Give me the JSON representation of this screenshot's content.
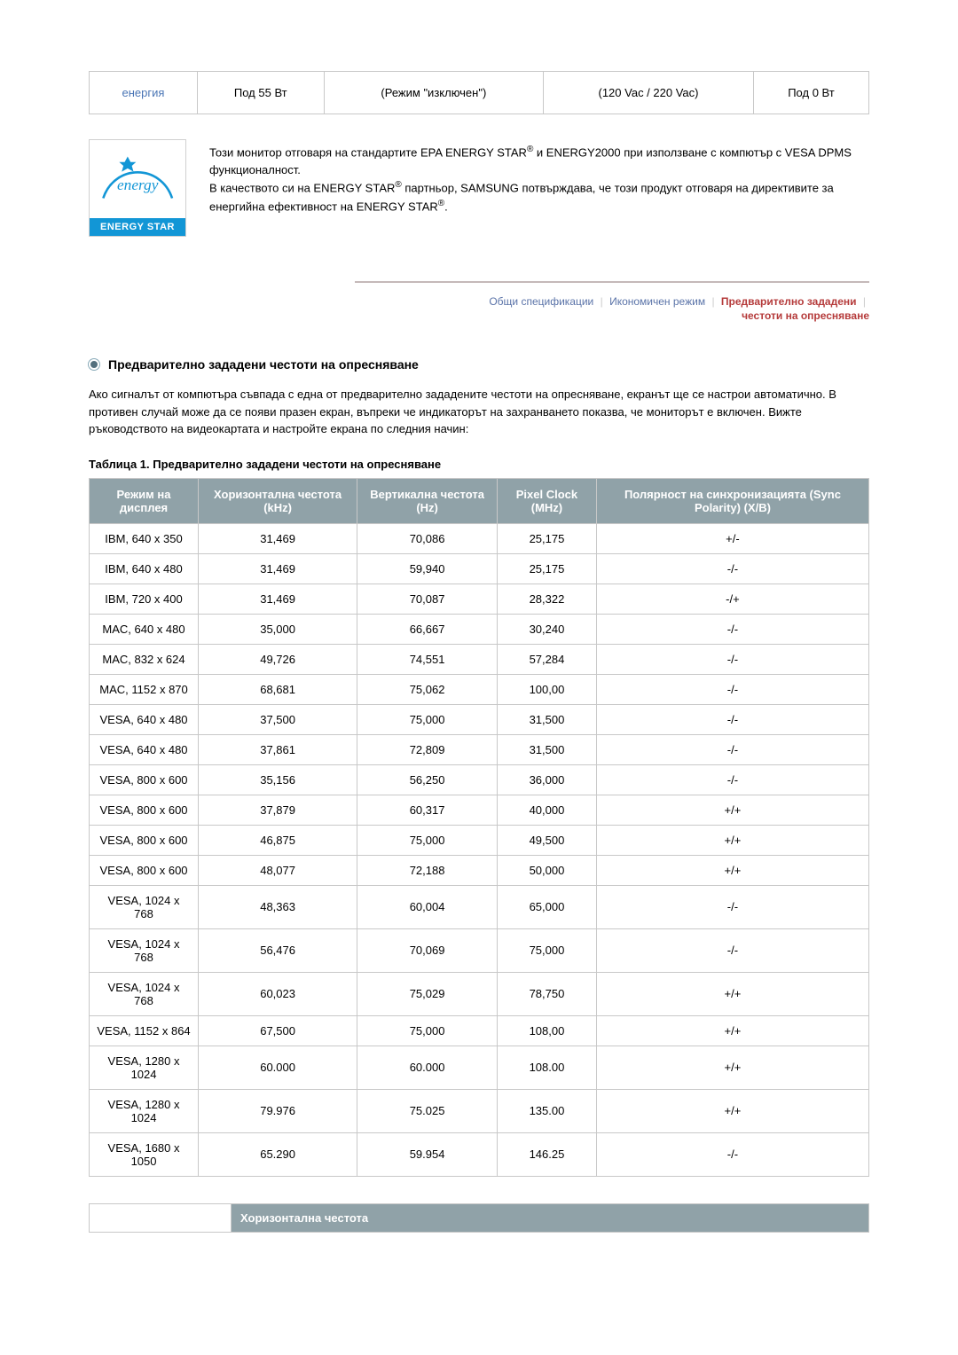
{
  "power_table": {
    "cells": [
      "енергия",
      "Под 55 Вт",
      "(Режим \"изключен\")",
      "(120 Vac / 220 Vac)",
      "Под 0 Вт"
    ]
  },
  "energy_star": {
    "logo_text_top": "energy",
    "logo_text_bar": "ENERGY STAR",
    "text_1": "Този монитор отговаря на стандартите EPA ENERGY STAR",
    "text_2": " и ENERGY2000 при използване с компютър с VESA DPMS функционалност.",
    "text_3": "В качеството си на ENERGY STAR",
    "text_4": " партньор, SAMSUNG потвърждава, че този продукт отговаря на директивите за енергийна ефективност на ENERGY STAR",
    "reg": "®"
  },
  "nav": {
    "item1": "Общи спецификации",
    "item2": "Икономичен режим",
    "item3": "Предварително зададени",
    "item3_sub": "честоти на опресняване",
    "sep": "|",
    "active_color": "#b53b3b",
    "inactive_color": "#6b7a9a"
  },
  "section": {
    "heading": "Предварително зададени честоти на опресняване",
    "body": "Ако сигналът от компютъра съвпада с една от предварително зададените честоти на опресняване, екранът ще се настрои автоматично. В противен случай може да се появи празен екран, въпреки че индикаторът на захранването показва, че мониторът е включен. Вижте ръководството на видеокартата и настройте екрана по следния начин:",
    "table_caption": "Таблица 1. Предварително зададени честоти на опресняване"
  },
  "preset_table": {
    "headers": [
      "Режим на дисплея",
      "Хоризонтална честота (kHz)",
      "Вертикална честота (Hz)",
      "Pixel Clock (MHz)",
      "Полярност на синхронизацията (Sync Polarity) (X/B)"
    ],
    "rows": [
      [
        "IBM, 640 x 350",
        "31,469",
        "70,086",
        "25,175",
        "+/-"
      ],
      [
        "IBM, 640 x 480",
        "31,469",
        "59,940",
        "25,175",
        "-/-"
      ],
      [
        "IBM, 720 x 400",
        "31,469",
        "70,087",
        "28,322",
        "-/+"
      ],
      [
        "MAC, 640 x 480",
        "35,000",
        "66,667",
        "30,240",
        "-/-"
      ],
      [
        "MAC, 832 x 624",
        "49,726",
        "74,551",
        "57,284",
        "-/-"
      ],
      [
        "MAC, 1152 x 870",
        "68,681",
        "75,062",
        "100,00",
        "-/-"
      ],
      [
        "VESA, 640 x 480",
        "37,500",
        "75,000",
        "31,500",
        "-/-"
      ],
      [
        "VESA, 640 x 480",
        "37,861",
        "72,809",
        "31,500",
        "-/-"
      ],
      [
        "VESA, 800 x 600",
        "35,156",
        "56,250",
        "36,000",
        "-/-"
      ],
      [
        "VESA, 800 x 600",
        "37,879",
        "60,317",
        "40,000",
        "+/+"
      ],
      [
        "VESA, 800 x 600",
        "46,875",
        "75,000",
        "49,500",
        "+/+"
      ],
      [
        "VESA, 800 x 600",
        "48,077",
        "72,188",
        "50,000",
        "+/+"
      ],
      [
        "VESA, 1024 x 768",
        "48,363",
        "60,004",
        "65,000",
        "-/-"
      ],
      [
        "VESA, 1024 x 768",
        "56,476",
        "70,069",
        "75,000",
        "-/-"
      ],
      [
        "VESA, 1024 x 768",
        "60,023",
        "75,029",
        "78,750",
        "+/+"
      ],
      [
        "VESA, 1152 x 864",
        "67,500",
        "75,000",
        "108,00",
        "+/+"
      ],
      [
        "VESA, 1280 x 1024",
        "60.000",
        "60.000",
        "108.00",
        "+/+"
      ],
      [
        "VESA, 1280 x 1024",
        "79.976",
        "75.025",
        "135.00",
        "+/+"
      ],
      [
        "VESA, 1680 x 1050",
        "65.290",
        "59.954",
        "146.25",
        "-/-"
      ]
    ],
    "header_bg": "#90a2a8",
    "header_fg": "#ffffff",
    "border": "#c8c8c8"
  },
  "bottom_bar": {
    "label": "Хоризонтална честота"
  }
}
